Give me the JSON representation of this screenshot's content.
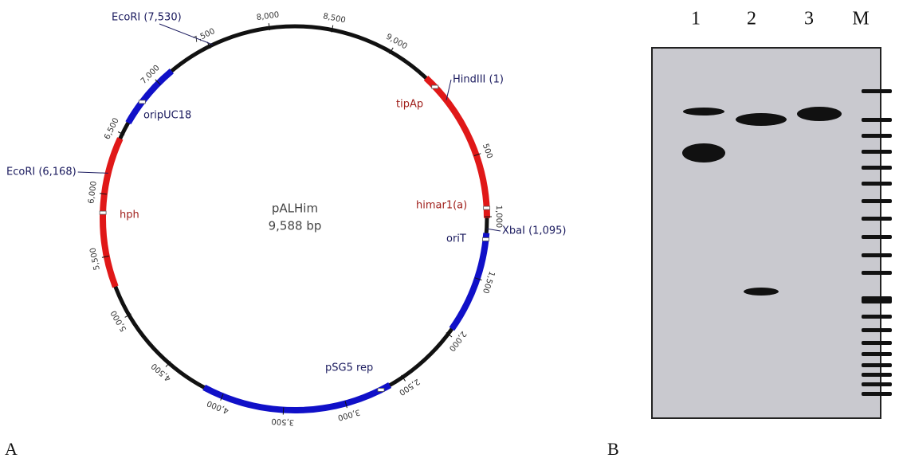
{
  "panels": {
    "a": {
      "label": "A",
      "plasmid": {
        "name": "pALHim",
        "size": "9,588 bp"
      },
      "scale": [
        "500",
        "1,000",
        "1,500",
        "2,000",
        "2,500",
        "3,000",
        "3,500",
        "4,000",
        "4,500",
        "5,000",
        "5,500",
        "6,000",
        "6,500",
        "7,000",
        "7,500",
        "8,000",
        "8,500",
        "9,000"
      ],
      "sites": [
        "EcoRI (7,530)",
        "HindIII (1)",
        "EcoRI (6,168)",
        "XbaI (1,095)"
      ],
      "features": [
        "tipAp",
        "oripUC18",
        "hph",
        "himar1(a)",
        "oriT",
        "pSG5 rep"
      ]
    },
    "b": {
      "label": "B",
      "lanes": [
        "1",
        "2",
        "3",
        "M"
      ]
    }
  }
}
